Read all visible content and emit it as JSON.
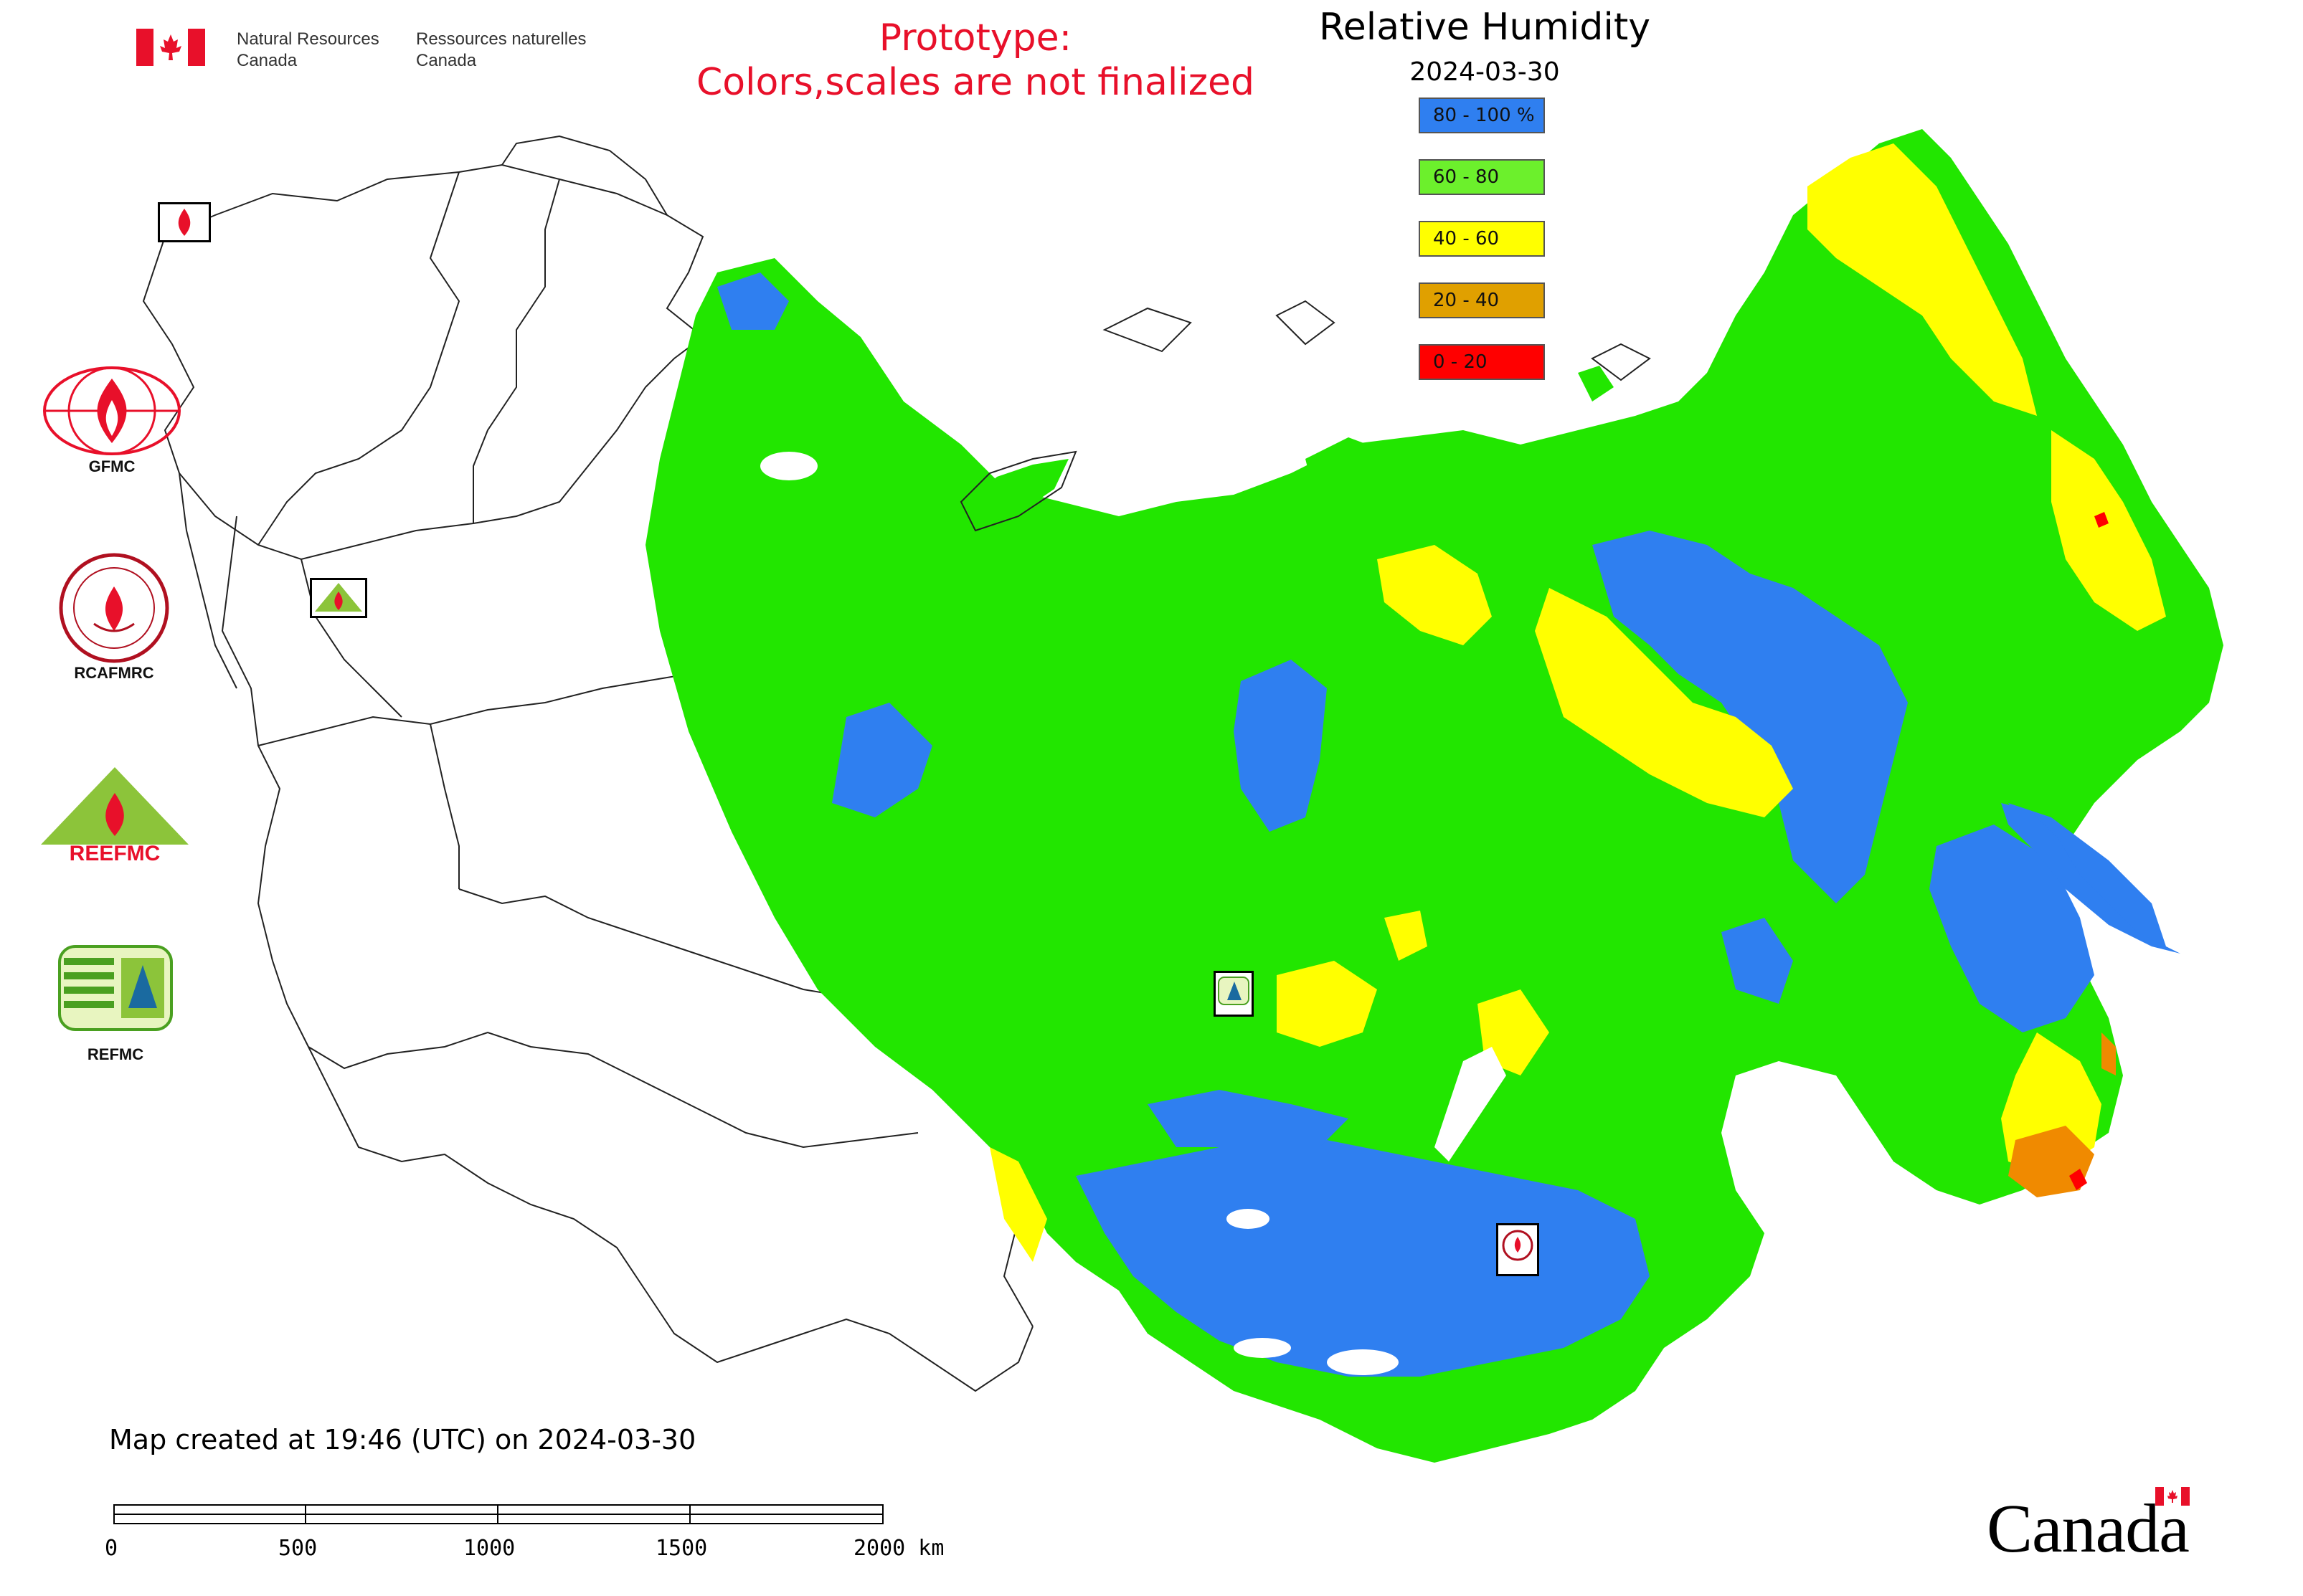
{
  "header": {
    "org_en_line1": "Natural Resources",
    "org_en_line2": "Canada",
    "org_fr_line1": "Ressources naturelles",
    "org_fr_line2": "Canada",
    "prototype_line1": "Prototype:",
    "prototype_line2": "Colors,scales are not finalized"
  },
  "map": {
    "title": "Relative Humidity",
    "date": "2024-03-30",
    "created": "Map created at 19:46 (UTC) on 2024-03-30"
  },
  "legend": {
    "items": [
      {
        "label": "80 - 100 %",
        "color": "#2f7ff0"
      },
      {
        "label": "60 - 80",
        "color": "#6cf02c"
      },
      {
        "label": "40 - 60",
        "color": "#ffff00"
      },
      {
        "label": "20 - 40",
        "color": "#e0a000"
      },
      {
        "label": "0 - 20",
        "color": "#ff0000"
      }
    ]
  },
  "logos": {
    "gfmc": "GFMC",
    "rcafmrc": "RCAFMRC",
    "reefmc": "REEFMC",
    "refmc": "REFMC"
  },
  "scale": {
    "labels": [
      "0",
      "500",
      "1000",
      "1500",
      "2000 km"
    ]
  },
  "footer": {
    "wordmark": "Canada"
  },
  "colors": {
    "humid_blue": "#2f7ff0",
    "green": "#22e600",
    "yellow": "#ffff00",
    "orange": "#f08a00",
    "red": "#ff0000",
    "accent_red": "#e8102a"
  }
}
